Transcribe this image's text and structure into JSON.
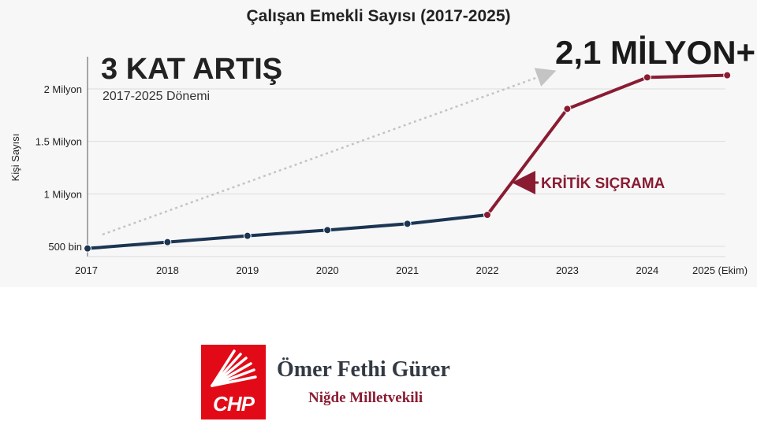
{
  "chart_data": {
    "type": "line",
    "title": "Çalışan Emekli Sayısı (2017-2025)",
    "ylabel": "Kişi Sayısı",
    "xlabel": "",
    "categories": [
      "2017",
      "2018",
      "2019",
      "2020",
      "2021",
      "2022",
      "2023",
      "2024",
      "2025 (Ekim)"
    ],
    "values": [
      480000,
      540000,
      600000,
      655000,
      715000,
      800000,
      1810000,
      2110000,
      2130000
    ],
    "y_ticks": [
      {
        "value": 500000,
        "label": "500 bin"
      },
      {
        "value": 1000000,
        "label": "1 Milyon"
      },
      {
        "value": 1500000,
        "label": "1.5 Milyon"
      },
      {
        "value": 2000000,
        "label": "2 Milyon"
      }
    ],
    "ylim": [
      450000,
      2450000
    ],
    "grid": true,
    "segment_colors": {
      "before_2022": "#1b3552",
      "from_2022": "#8a1c32"
    },
    "trend_arrow_color": "#c4c4c4",
    "annotations": {
      "growth_headline": "3 KAT ARTIŞ",
      "growth_period": "2017-2025 Dönemi",
      "peak_label": "2,1 MİLYON+",
      "jump_label": "KRİTİK SIÇRAMA"
    }
  },
  "footer": {
    "logo_text": "CHP",
    "name": "Ömer Fethi Gürer",
    "role": "Niğde Milletvekili",
    "logo_color": "#e30a17"
  }
}
